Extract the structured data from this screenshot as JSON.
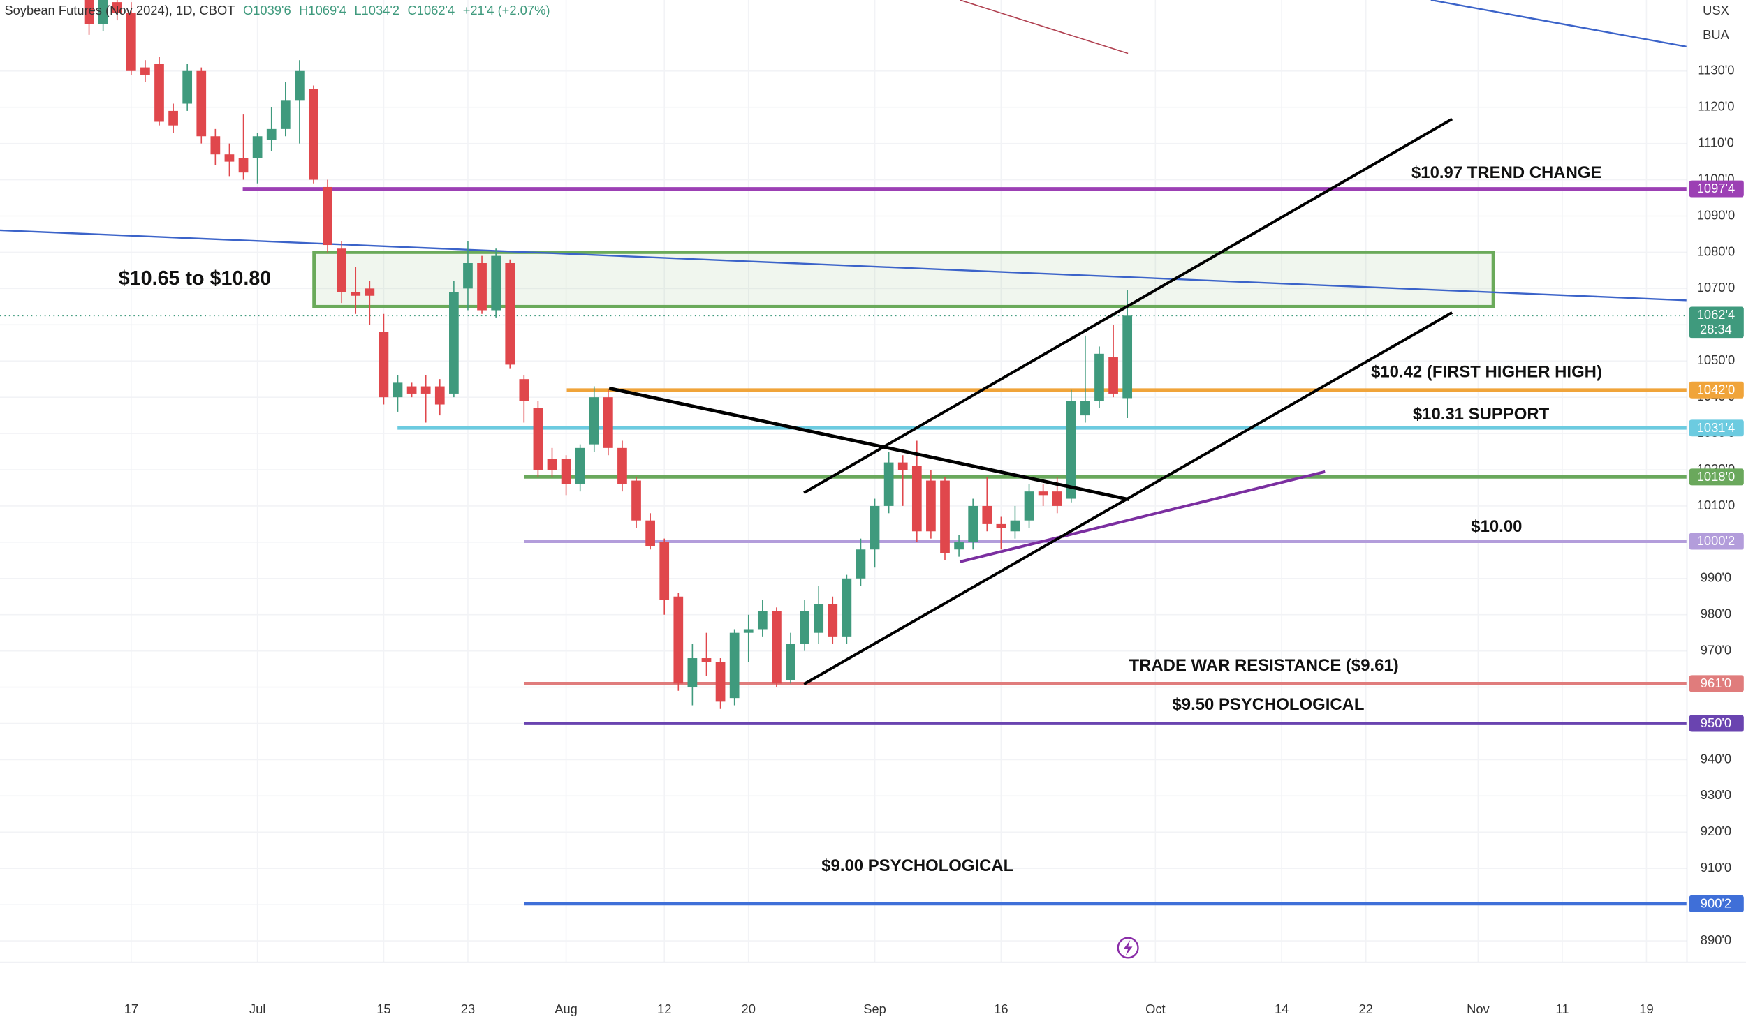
{
  "chart_data": {
    "type": "candlestick",
    "title": "Soybean Futures (Nov 2024), 1D, CBOT",
    "readout": [
      "O1039'6",
      "H1069'4",
      "L1034'2",
      "C1062'4",
      "+21'4 (+2.07%)"
    ],
    "axis_units": [
      "USX",
      "BUA"
    ],
    "up_color": "#3f9a7d",
    "down_color": "#e0474c",
    "grid": true,
    "categories": [
      null,
      null,
      null,
      "17",
      null,
      null,
      null,
      null,
      null,
      null,
      null,
      null,
      "Jul",
      null,
      null,
      null,
      null,
      null,
      null,
      null,
      null,
      "15",
      null,
      null,
      null,
      null,
      null,
      "23",
      null,
      null,
      null,
      null,
      null,
      null,
      "Aug",
      null,
      null,
      null,
      null,
      null,
      null,
      "12",
      null,
      null,
      null,
      null,
      null,
      "20",
      null,
      null,
      null,
      null,
      null,
      null,
      null,
      null,
      "Sep",
      null,
      null,
      null,
      null,
      null,
      null,
      null,
      null,
      "16",
      null,
      null,
      null,
      null,
      null,
      null,
      null,
      null,
      null,
      null,
      "Oct",
      null,
      null,
      null,
      null,
      null,
      null,
      null,
      null,
      "14",
      null,
      null,
      null,
      null,
      null,
      "22",
      null,
      null,
      null,
      null,
      null,
      null,
      null,
      "Nov",
      null,
      null,
      null,
      null,
      null,
      "11",
      null,
      null,
      null,
      null,
      null,
      "19",
      null,
      null
    ],
    "open": [
      1150,
      1143,
      1149,
      1146,
      1131,
      1132,
      1119,
      1121,
      1130,
      1112,
      1107,
      1106,
      1106,
      1111,
      1114,
      1122,
      1125,
      1098,
      1081,
      1069,
      1070,
      1058,
      1040,
      1043,
      1043,
      1043,
      1041,
      1070,
      1077,
      1064,
      1077,
      1045,
      1037,
      1023,
      1023,
      1016,
      1027,
      1040,
      1026,
      1017,
      1006,
      1000,
      985,
      960,
      968,
      967,
      957,
      975,
      976,
      981,
      962,
      972,
      975,
      983,
      974,
      990,
      998,
      1010,
      1022,
      1021,
      1017,
      1017,
      998,
      1000,
      1010,
      1005,
      1003,
      1006,
      1014,
      1014,
      1012,
      1035,
      1039,
      1051,
      1039.75,
      null,
      null,
      null,
      null,
      null,
      null,
      null,
      null,
      null,
      null,
      null,
      null,
      null,
      null,
      null,
      null,
      null,
      null,
      null,
      null,
      null,
      null,
      null,
      null,
      null,
      null,
      null,
      null,
      null,
      null,
      null,
      null,
      null,
      null,
      null,
      null,
      null,
      null,
      null
    ],
    "high": [
      1152,
      1152,
      1151,
      1149,
      1133,
      1134,
      1121,
      1132,
      1131,
      1114,
      1110,
      1118,
      1113,
      1120,
      1127,
      1133,
      1126,
      1100,
      1083,
      1076,
      1072,
      1063,
      1046,
      1044,
      1046,
      1045,
      1072,
      1083,
      1079,
      1081,
      1078,
      1046,
      1039,
      1026,
      1024,
      1027,
      1043,
      1042,
      1028,
      1018,
      1008,
      1001,
      986,
      972,
      975,
      968,
      976,
      980,
      984,
      982,
      975,
      984,
      988,
      985,
      991,
      1001,
      1012,
      1025,
      1024,
      1028,
      1020,
      1018,
      1002,
      1012,
      1018,
      1007,
      1010,
      1016,
      1016,
      1018,
      1042,
      1057,
      1054,
      1060,
      1069.5,
      null,
      null,
      null,
      null,
      null,
      null,
      null,
      null,
      null,
      null,
      null,
      null,
      null,
      null,
      null,
      null,
      null,
      null,
      null,
      null,
      null,
      null,
      null,
      null,
      null,
      null,
      null,
      null,
      null,
      null,
      null,
      null,
      null,
      null,
      null,
      null,
      null,
      null,
      null
    ],
    "low": [
      1140,
      1141,
      1144,
      1129,
      1127,
      1115,
      1113,
      1119,
      1110,
      1104,
      1101,
      1100,
      1099,
      1108,
      1112,
      1110,
      1099,
      1080,
      1066,
      1063,
      1060,
      1038,
      1036,
      1040,
      1033,
      1035,
      1040,
      1064,
      1063,
      1062,
      1048,
      1033,
      1018,
      1018,
      1013,
      1014,
      1025,
      1024,
      1014,
      1004,
      998,
      980,
      959,
      955,
      963,
      954,
      955,
      967,
      974,
      960,
      961,
      970,
      972,
      972,
      972,
      988,
      993,
      1008,
      1010,
      1000,
      1001,
      995,
      996,
      998,
      1003,
      998,
      1001,
      1004,
      1010,
      1008,
      1011,
      1033,
      1037,
      1040,
      1034.25,
      null,
      null,
      null,
      null,
      null,
      null,
      null,
      null,
      null,
      null,
      null,
      null,
      null,
      null,
      null,
      null,
      null,
      null,
      null,
      null,
      null,
      null,
      null,
      null,
      null,
      null,
      null,
      null,
      null,
      null,
      null,
      null,
      null,
      null,
      null,
      null,
      null,
      null,
      null
    ],
    "close": [
      1143,
      1150,
      1146,
      1130,
      1129,
      1116,
      1115,
      1130,
      1112,
      1107,
      1105,
      1102,
      1112,
      1114,
      1122,
      1130,
      1100,
      1082,
      1069,
      1068,
      1068,
      1040,
      1044,
      1041,
      1041,
      1038,
      1069,
      1077,
      1064,
      1079,
      1049,
      1039,
      1020,
      1020,
      1016,
      1026,
      1040,
      1026,
      1016,
      1006,
      999,
      984,
      961,
      968,
      967,
      956,
      975,
      976,
      981,
      961,
      972,
      981,
      983,
      974,
      990,
      998,
      1010,
      1022,
      1020,
      1003,
      1003,
      997,
      1000,
      1010,
      1005,
      1004,
      1006,
      1014,
      1013,
      1010,
      1039,
      1039,
      1052,
      1041,
      1062.5,
      null,
      null,
      null,
      null,
      null,
      null,
      null,
      null,
      null,
      null,
      null,
      null,
      null,
      null,
      null,
      null,
      null,
      null,
      null,
      null,
      null,
      null,
      null,
      null,
      null,
      null,
      null,
      null,
      null,
      null,
      null,
      null,
      null,
      null,
      null,
      null,
      null,
      null,
      null
    ],
    "ylim": [
      884.1,
      1149.6
    ],
    "yticks": [
      {
        "value": 890,
        "label": "890'0"
      },
      {
        "value": 900,
        "label": "900'0"
      },
      {
        "value": 910,
        "label": "910'0"
      },
      {
        "value": 920,
        "label": "920'0"
      },
      {
        "value": 930,
        "label": "930'0"
      },
      {
        "value": 940,
        "label": "940'0"
      },
      {
        "value": 950,
        "label": "950'0"
      },
      {
        "value": 960,
        "label": "960'0"
      },
      {
        "value": 970,
        "label": "970'0"
      },
      {
        "value": 980,
        "label": "980'0"
      },
      {
        "value": 990,
        "label": "990'0"
      },
      {
        "value": 1000,
        "label": "1000'0"
      },
      {
        "value": 1010,
        "label": "1010'0"
      },
      {
        "value": 1020,
        "label": "1020'0"
      },
      {
        "value": 1030,
        "label": "1030'0"
      },
      {
        "value": 1040,
        "label": "1040'0"
      },
      {
        "value": 1050,
        "label": "1050'0"
      },
      {
        "value": 1060,
        "label": "1060'0"
      },
      {
        "value": 1070,
        "label": "1070'0"
      },
      {
        "value": 1080,
        "label": "1080'0"
      },
      {
        "value": 1090,
        "label": "1090'0"
      },
      {
        "value": 1100,
        "label": "1100'0"
      },
      {
        "value": 1110,
        "label": "1110'0"
      },
      {
        "value": 1120,
        "label": "1120'0"
      },
      {
        "value": 1130,
        "label": "1130'0"
      }
    ],
    "levels": [
      {
        "value": 1097.5,
        "label": "1097'4",
        "color": "#9c40b4",
        "note": "$10.97 TREND CHANGE"
      },
      {
        "value": 1042,
        "label": "1042'0",
        "color": "#f0a43a",
        "note": "$10.42 (FIRST HIGHER HIGH)"
      },
      {
        "value": 1031.5,
        "label": "1031'4",
        "color": "#6ccbe0",
        "note": "$10.31 SUPPORT"
      },
      {
        "value": 1018,
        "label": "1018'0",
        "color": "#6aa85c"
      },
      {
        "value": 1000.25,
        "label": "1000'2",
        "color": "#b39ddb",
        "note": "$10.00"
      },
      {
        "value": 961,
        "label": "961'0",
        "color": "#e07c7c",
        "note": "TRADE WAR RESISTANCE ($9.61)"
      },
      {
        "value": 950,
        "label": "950'0",
        "color": "#6a44b0",
        "note": "$9.50 PSYCHOLOGICAL"
      },
      {
        "value": 900.25,
        "label": "900'2",
        "color": "#3f6fd8",
        "note": "$9.00 PSYCHOLOGICAL"
      }
    ],
    "zone": {
      "label": "$10.65 to $10.80",
      "low": 1065,
      "high": 1080,
      "color": "#6aaa5a"
    },
    "last_price": {
      "value": 1062.5,
      "label": "1062'4",
      "countdown": "28:34",
      "color": "#3f9a7d"
    }
  }
}
